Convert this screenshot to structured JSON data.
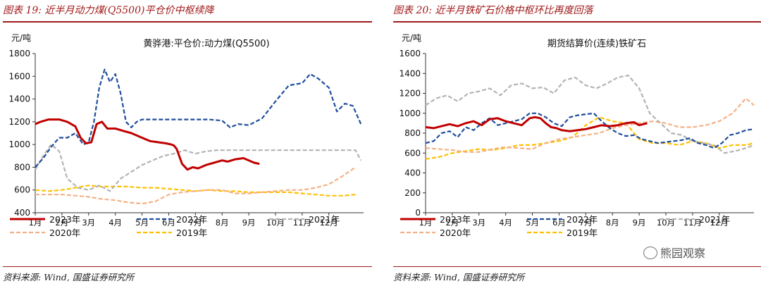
{
  "panels": [
    {
      "title": "图表 19:  近半月动力煤(Q5500)平仓价中枢续降",
      "source": "资料来源:  Wind,  国盛证券研究所"
    },
    {
      "title": "图表 20:  近半月铁矿石价格中枢环比再度回落",
      "source": "资料来源:  Wind,  国盛证券研究所"
    }
  ],
  "watermark": "熊园观察",
  "colors": {
    "title_red": "#a01919",
    "series": {
      "2023年": "#c00000",
      "2022年": "#1f4e9c",
      "2021年": "#b3b3b3",
      "2020年": "#f4b183",
      "2019年": "#ffc000"
    }
  },
  "chart_data": [
    {
      "type": "line",
      "title": "黄骅港:平仓价:动力煤(Q5500)",
      "ylabel": "元/吨",
      "ylim": [
        400,
        1800
      ],
      "yticks": [
        400,
        600,
        800,
        1000,
        1200,
        1400,
        1600,
        1800
      ],
      "x_tick_labels": [
        "1月",
        "2月",
        "3月",
        "4月",
        "5月",
        "6月",
        "7月",
        "8月",
        "9月",
        "10月",
        "11月",
        "12月"
      ],
      "legend_position": "bottom",
      "series": [
        {
          "name": "2023年",
          "style": "solid",
          "x": [
            0,
            0.2,
            0.5,
            0.9,
            1.2,
            1.5,
            1.7,
            1.9,
            2.1,
            2.3,
            2.5,
            2.7,
            3.0,
            3.3,
            3.6,
            3.8,
            4.0,
            4.3,
            4.6,
            4.9,
            5.1,
            5.2,
            5.3,
            5.5,
            5.7,
            5.9,
            6.1,
            6.4,
            6.7,
            7.0,
            7.2,
            7.5,
            7.8,
            8.0,
            8.2,
            8.4
          ],
          "y": [
            1180,
            1200,
            1220,
            1220,
            1200,
            1160,
            1060,
            1010,
            1020,
            1180,
            1200,
            1140,
            1140,
            1120,
            1100,
            1080,
            1060,
            1030,
            1020,
            1010,
            1000,
            990,
            960,
            830,
            780,
            800,
            790,
            820,
            840,
            860,
            850,
            870,
            880,
            860,
            840,
            830
          ]
        },
        {
          "name": "2022年",
          "style": "dashed",
          "x": [
            0,
            0.3,
            0.6,
            0.9,
            1.2,
            1.5,
            1.8,
            2.0,
            2.2,
            2.4,
            2.6,
            2.8,
            3.0,
            3.2,
            3.4,
            3.6,
            3.8,
            4.0,
            4.5,
            5.0,
            5.5,
            6.0,
            6.5,
            7.0,
            7.3,
            7.6,
            8.0,
            8.5,
            9.0,
            9.5,
            10.0,
            10.3,
            10.6,
            11.0,
            11.3,
            11.6,
            11.9,
            12.2
          ],
          "y": [
            800,
            880,
            980,
            1060,
            1060,
            1100,
            1000,
            1020,
            1200,
            1500,
            1660,
            1550,
            1620,
            1450,
            1200,
            1150,
            1200,
            1220,
            1220,
            1220,
            1220,
            1220,
            1220,
            1210,
            1150,
            1180,
            1170,
            1230,
            1380,
            1520,
            1540,
            1620,
            1580,
            1500,
            1290,
            1360,
            1340,
            1180
          ]
        },
        {
          "name": "2021年",
          "style": "dashed",
          "x": [
            0,
            0.3,
            0.6,
            0.9,
            1.2,
            1.6,
            2.0,
            2.4,
            2.8,
            3.2,
            3.6,
            4.0,
            4.4,
            4.8,
            5.2,
            5.6,
            6.0,
            6.4,
            6.8,
            7.2,
            7.6,
            8.0,
            9.0,
            10.0,
            11.0,
            12.0,
            12.2
          ],
          "y": [
            780,
            900,
            1000,
            940,
            700,
            620,
            600,
            640,
            590,
            700,
            760,
            820,
            860,
            900,
            920,
            950,
            920,
            940,
            950,
            950,
            950,
            950,
            950,
            950,
            950,
            950,
            860
          ]
        },
        {
          "name": "2020年",
          "style": "dashed",
          "x": [
            0,
            0.5,
            1.0,
            1.5,
            2.0,
            2.5,
            3.0,
            3.5,
            4.0,
            4.5,
            5.0,
            5.5,
            6.0,
            6.5,
            7.0,
            7.5,
            8.0,
            8.5,
            9.0,
            9.5,
            10.0,
            10.5,
            11.0,
            11.5,
            12.0
          ],
          "y": [
            560,
            560,
            560,
            550,
            540,
            520,
            510,
            490,
            480,
            500,
            560,
            580,
            590,
            600,
            600,
            570,
            570,
            580,
            590,
            600,
            600,
            620,
            650,
            720,
            800
          ]
        },
        {
          "name": "2019年",
          "style": "dashed",
          "x": [
            0,
            0.5,
            1.0,
            1.5,
            2.0,
            2.5,
            3.0,
            3.5,
            4.0,
            4.5,
            5.0,
            5.5,
            6.0,
            6.5,
            7.0,
            7.5,
            8.0,
            8.5,
            9.0,
            9.5,
            10.0,
            10.5,
            11.0,
            11.5,
            12.0
          ],
          "y": [
            600,
            590,
            600,
            620,
            640,
            630,
            630,
            630,
            620,
            620,
            610,
            600,
            590,
            600,
            590,
            590,
            580,
            580,
            580,
            580,
            570,
            560,
            550,
            550,
            560
          ]
        }
      ]
    },
    {
      "type": "line",
      "title": "期货结算价(连续)铁矿石",
      "ylabel": "元/吨",
      "ylim": [
        0,
        1600
      ],
      "yticks": [
        0,
        200,
        400,
        600,
        800,
        1000,
        1200,
        1400,
        1600
      ],
      "x_tick_labels": [
        "1月",
        "2月",
        "3月",
        "4月",
        "5月",
        "6月",
        "7月",
        "8月",
        "9月",
        "10月",
        "11月",
        "12月"
      ],
      "legend_position": "bottom",
      "series": [
        {
          "name": "2023年",
          "style": "solid",
          "x": [
            0,
            0.3,
            0.6,
            0.9,
            1.2,
            1.5,
            1.8,
            2.1,
            2.4,
            2.7,
            3.0,
            3.3,
            3.6,
            3.9,
            4.1,
            4.3,
            4.5,
            4.7,
            4.9,
            5.1,
            5.4,
            5.7,
            6.0,
            6.3,
            6.6,
            6.9,
            7.2,
            7.5,
            7.8,
            8.0,
            8.3
          ],
          "y": [
            860,
            850,
            870,
            890,
            870,
            900,
            920,
            880,
            940,
            950,
            920,
            900,
            880,
            950,
            960,
            950,
            900,
            860,
            850,
            830,
            820,
            830,
            840,
            860,
            880,
            870,
            880,
            900,
            910,
            880,
            900
          ]
        },
        {
          "name": "2022年",
          "style": "dashed",
          "x": [
            0,
            0.3,
            0.6,
            0.9,
            1.2,
            1.5,
            1.8,
            2.1,
            2.4,
            2.7,
            3.0,
            3.3,
            3.6,
            3.9,
            4.2,
            4.5,
            4.8,
            5.1,
            5.4,
            5.7,
            6.0,
            6.3,
            6.6,
            6.9,
            7.2,
            7.5,
            7.8,
            8.1,
            8.4,
            8.7,
            9.0,
            9.3,
            9.6,
            9.9,
            10.2,
            10.5,
            10.8,
            11.1,
            11.4,
            11.7,
            12.0,
            12.3
          ],
          "y": [
            700,
            720,
            800,
            820,
            760,
            860,
            830,
            900,
            950,
            880,
            900,
            920,
            940,
            1000,
            1000,
            960,
            900,
            870,
            960,
            980,
            990,
            1000,
            920,
            850,
            800,
            770,
            780,
            740,
            720,
            700,
            710,
            720,
            730,
            750,
            700,
            680,
            650,
            700,
            780,
            800,
            830,
            840
          ]
        },
        {
          "name": "2021年",
          "style": "dashed",
          "x": [
            0,
            0.4,
            0.8,
            1.2,
            1.6,
            2.0,
            2.4,
            2.8,
            3.2,
            3.6,
            4.0,
            4.4,
            4.8,
            5.2,
            5.6,
            6.0,
            6.4,
            6.8,
            7.2,
            7.6,
            8.0,
            8.4,
            8.8,
            9.2,
            9.6,
            10.0,
            10.4,
            10.8,
            11.2,
            11.6,
            12.0,
            12.3
          ],
          "y": [
            1080,
            1150,
            1180,
            1120,
            1200,
            1220,
            1250,
            1180,
            1280,
            1300,
            1250,
            1260,
            1200,
            1330,
            1360,
            1280,
            1250,
            1300,
            1360,
            1380,
            1250,
            1000,
            900,
            800,
            780,
            720,
            700,
            680,
            600,
            620,
            650,
            680
          ]
        },
        {
          "name": "2020年",
          "style": "dashed",
          "x": [
            0,
            0.5,
            1.0,
            1.5,
            2.0,
            2.5,
            3.0,
            3.5,
            4.0,
            4.5,
            5.0,
            5.5,
            6.0,
            6.5,
            7.0,
            7.5,
            8.0,
            8.5,
            9.0,
            9.5,
            10.0,
            10.5,
            11.0,
            11.5,
            12.0,
            12.3
          ],
          "y": [
            650,
            640,
            630,
            610,
            610,
            640,
            660,
            650,
            640,
            700,
            740,
            760,
            780,
            800,
            850,
            880,
            900,
            920,
            900,
            860,
            860,
            880,
            920,
            1000,
            1150,
            1080
          ]
        },
        {
          "name": "2019年",
          "style": "dashed",
          "x": [
            0,
            0.5,
            1.0,
            1.5,
            2.0,
            2.5,
            3.0,
            3.5,
            4.0,
            4.5,
            5.0,
            5.5,
            6.0,
            6.5,
            7.0,
            7.5,
            8.0,
            8.5,
            9.0,
            9.5,
            10.0,
            10.5,
            11.0,
            11.5,
            12.0,
            12.3
          ],
          "y": [
            540,
            560,
            600,
            620,
            640,
            630,
            650,
            680,
            680,
            700,
            720,
            760,
            880,
            960,
            920,
            900,
            740,
            700,
            700,
            680,
            720,
            700,
            650,
            680,
            680,
            700
          ]
        }
      ]
    }
  ]
}
